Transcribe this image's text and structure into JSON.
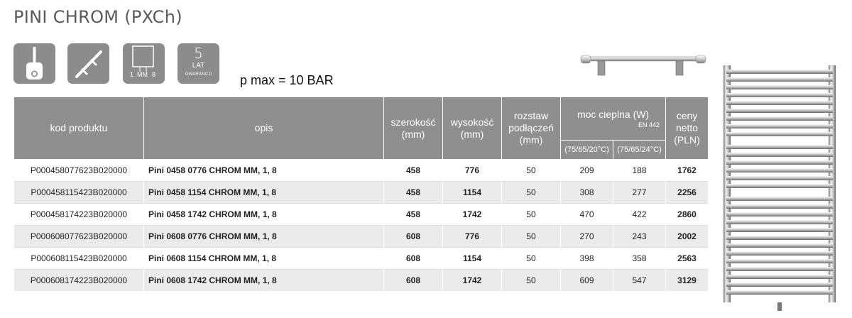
{
  "title": "PINI CHROM (PXCh)",
  "icons": {
    "tile_color": "#8c8c8c",
    "items": [
      "electric-heater-icon",
      "towel-rail-icon",
      "connection-size-icon",
      "warranty-badge"
    ],
    "size_left": "1",
    "size_mid": "MM",
    "size_right": "8",
    "warranty_number": "5",
    "warranty_unit": "LAT",
    "warranty_label": "GWARANCJI"
  },
  "pressure": "p max = 10 BAR",
  "table": {
    "header_color": "#8f8f8f",
    "headers": {
      "code": "kod produktu",
      "desc": "opis",
      "width": "szerokość (mm)",
      "height": "wysokość (mm)",
      "spacing": "rozstaw podłączeń (mm)",
      "power": "moc cieplna (W)",
      "power_norm": "EN 442",
      "power_a": "(75/65/20°C)",
      "power_b": "(75/65/24°C)",
      "price": "ceny netto (PLN)"
    },
    "rows": [
      {
        "code": "P000458077623B020000",
        "desc": "Pini 0458 0776 CHROM MM, 1, 8",
        "width": "458",
        "height": "776",
        "spacing": "50",
        "p1": "209",
        "p2": "188",
        "price": "1762"
      },
      {
        "code": "P000458115423B020000",
        "desc": "Pini 0458 1154 CHROM MM, 1, 8",
        "width": "458",
        "height": "1154",
        "spacing": "50",
        "p1": "308",
        "p2": "277",
        "price": "2256"
      },
      {
        "code": "P000458174223B020000",
        "desc": "Pini 0458 1742 CHROM MM, 1, 8",
        "width": "458",
        "height": "1742",
        "spacing": "50",
        "p1": "470",
        "p2": "422",
        "price": "2860"
      },
      {
        "code": "P000608077623B020000",
        "desc": "Pini 0608 0776 CHROM MM, 1, 8",
        "width": "608",
        "height": "776",
        "spacing": "50",
        "p1": "270",
        "p2": "243",
        "price": "2002"
      },
      {
        "code": "P000608115423B020000",
        "desc": "Pini 0608 1154 CHROM MM, 1, 8",
        "width": "608",
        "height": "1154",
        "spacing": "50",
        "p1": "398",
        "p2": "358",
        "price": "2563"
      },
      {
        "code": "P000608174223B020000",
        "desc": "Pini 0608 1742 CHROM MM, 1, 8",
        "width": "608",
        "height": "1742",
        "spacing": "50",
        "p1": "609",
        "p2": "547",
        "price": "3129"
      }
    ]
  }
}
